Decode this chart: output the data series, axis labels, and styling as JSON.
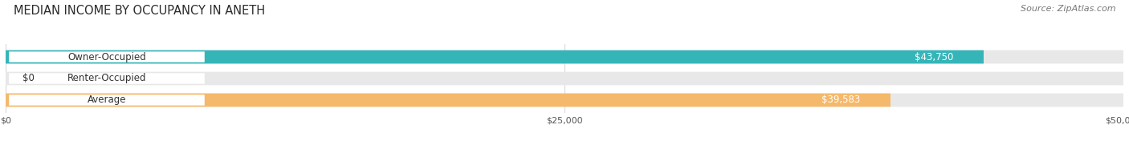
{
  "title": "MEDIAN INCOME BY OCCUPANCY IN ANETH",
  "source": "Source: ZipAtlas.com",
  "categories": [
    "Owner-Occupied",
    "Renter-Occupied",
    "Average"
  ],
  "values": [
    43750,
    0,
    39583
  ],
  "labels": [
    "$43,750",
    "$0",
    "$39,583"
  ],
  "bar_colors": [
    "#35b5b8",
    "#c5a8d0",
    "#f5b96b"
  ],
  "bar_bg_color": "#e8e8e8",
  "xlim": [
    0,
    50000
  ],
  "xtick_labels": [
    "$0",
    "$25,000",
    "$50,000"
  ],
  "title_fontsize": 10.5,
  "source_fontsize": 8,
  "cat_fontsize": 8.5,
  "val_fontsize": 8.5,
  "bar_height": 0.62,
  "background_color": "#ffffff"
}
